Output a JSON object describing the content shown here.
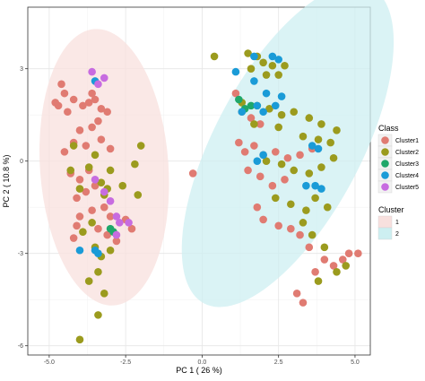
{
  "chart_data": {
    "type": "scatter",
    "xlabel": "PC 1 ( 26 %)",
    "ylabel": "PC 2 ( 10.8 %)",
    "xlim": [
      -5.7,
      5.5
    ],
    "ylim": [
      -6.3,
      5.0
    ],
    "x_ticks": [
      -5.0,
      -2.5,
      0.0,
      2.5,
      5.0
    ],
    "x_tick_labels": [
      "-5.0",
      "-2.5",
      "0.0",
      "2.5",
      "5.0"
    ],
    "y_ticks": [
      -6,
      -3,
      0,
      3
    ],
    "y_tick_labels": [
      "-6",
      "-3",
      "0",
      "3"
    ],
    "grid": true,
    "legends": [
      {
        "title": "Class",
        "placement": "right",
        "entries": [
          {
            "label": "Cluster1",
            "color": "#E07B72"
          },
          {
            "label": "Cluster2",
            "color": "#9B9B1E"
          },
          {
            "label": "Cluster3",
            "color": "#1FA76A"
          },
          {
            "label": "Cluster4",
            "color": "#1A9BD7"
          },
          {
            "label": "Cluster5",
            "color": "#C76CE0"
          }
        ]
      },
      {
        "title": "Cluster",
        "placement": "right",
        "entries": [
          {
            "label": "1",
            "color": "#F8E0DE"
          },
          {
            "label": "2",
            "color": "#CDEFF1"
          }
        ]
      }
    ],
    "ellipses": [
      {
        "group": "1",
        "center": [
          -3.2,
          -0.2
        ],
        "rx": 2.1,
        "ry": 4.5,
        "angle_deg": -4,
        "color": "#F8E0DE"
      },
      {
        "group": "2",
        "center": [
          2.8,
          0.5
        ],
        "rx": 2.4,
        "ry": 5.8,
        "angle_deg": 28,
        "color": "#CDEFF1"
      }
    ],
    "series": [
      {
        "name": "Cluster1",
        "color": "#E07B72",
        "points": [
          [
            -4.6,
            2.5
          ],
          [
            -4.5,
            2.2
          ],
          [
            -4.7,
            1.8
          ],
          [
            -4.8,
            1.9
          ],
          [
            -4.4,
            1.6
          ],
          [
            -4.2,
            2.0
          ],
          [
            -3.9,
            1.8
          ],
          [
            -3.7,
            1.9
          ],
          [
            -3.6,
            2.2
          ],
          [
            -3.5,
            2.0
          ],
          [
            -3.3,
            1.7
          ],
          [
            -3.1,
            1.6
          ],
          [
            -3.4,
            1.3
          ],
          [
            -3.6,
            1.1
          ],
          [
            -4.0,
            1.0
          ],
          [
            -4.2,
            0.6
          ],
          [
            -4.5,
            0.3
          ],
          [
            -3.8,
            0.5
          ],
          [
            -3.3,
            0.7
          ],
          [
            -3.0,
            0.4
          ],
          [
            -4.3,
            -0.4
          ],
          [
            -4.0,
            -0.6
          ],
          [
            -3.7,
            -0.3
          ],
          [
            -4.1,
            -1.2
          ],
          [
            -3.8,
            -1.0
          ],
          [
            -3.5,
            -0.8
          ],
          [
            -3.2,
            -1.5
          ],
          [
            -3.0,
            -1.8
          ],
          [
            -4.0,
            -1.8
          ],
          [
            -4.1,
            -2.1
          ],
          [
            -3.4,
            -2.2
          ],
          [
            -3.1,
            -2.4
          ],
          [
            -2.8,
            -2.6
          ],
          [
            -2.5,
            -1.9
          ],
          [
            -2.3,
            -2.2
          ],
          [
            -4.2,
            -2.5
          ],
          [
            -3.6,
            -1.6
          ],
          [
            -0.3,
            -0.4
          ],
          [
            1.1,
            2.2
          ],
          [
            1.3,
            1.6
          ],
          [
            1.6,
            1.4
          ],
          [
            1.9,
            1.2
          ],
          [
            1.2,
            0.6
          ],
          [
            1.4,
            0.3
          ],
          [
            1.7,
            0.5
          ],
          [
            2.0,
            0.2
          ],
          [
            2.4,
            0.3
          ],
          [
            2.8,
            0.1
          ],
          [
            3.2,
            0.2
          ],
          [
            3.6,
            0.4
          ],
          [
            1.5,
            -0.3
          ],
          [
            1.9,
            -0.5
          ],
          [
            2.3,
            -0.8
          ],
          [
            2.7,
            -0.6
          ],
          [
            1.8,
            -1.5
          ],
          [
            2.0,
            -1.9
          ],
          [
            2.5,
            -2.1
          ],
          [
            2.9,
            -2.2
          ],
          [
            3.2,
            -2.4
          ],
          [
            3.5,
            -2.8
          ],
          [
            3.7,
            -3.6
          ],
          [
            4.0,
            -3.2
          ],
          [
            4.3,
            -3.4
          ],
          [
            4.6,
            -3.2
          ],
          [
            4.8,
            -3.0
          ],
          [
            5.1,
            -3.0
          ],
          [
            3.1,
            -4.3
          ],
          [
            3.3,
            -4.6
          ]
        ]
      },
      {
        "name": "Cluster2",
        "color": "#9B9B1E",
        "points": [
          [
            -4.2,
            0.5
          ],
          [
            -4.3,
            -0.3
          ],
          [
            -4.0,
            -0.9
          ],
          [
            -3.7,
            -0.2
          ],
          [
            -3.5,
            0.2
          ],
          [
            -3.3,
            -0.7
          ],
          [
            -3.1,
            -0.9
          ],
          [
            -3.0,
            -0.3
          ],
          [
            -3.2,
            -1.1
          ],
          [
            -3.6,
            -2.0
          ],
          [
            -3.9,
            -2.3
          ],
          [
            -3.5,
            -2.8
          ],
          [
            -3.3,
            -3.1
          ],
          [
            -3.0,
            -2.9
          ],
          [
            -3.4,
            -3.6
          ],
          [
            -3.7,
            -3.9
          ],
          [
            -3.2,
            -4.3
          ],
          [
            -3.4,
            -5.0
          ],
          [
            -4.0,
            -5.8
          ],
          [
            -2.6,
            -0.8
          ],
          [
            -2.2,
            -0.1
          ],
          [
            -2.0,
            0.5
          ],
          [
            -2.1,
            -1.1
          ],
          [
            0.4,
            3.4
          ],
          [
            1.5,
            3.5
          ],
          [
            1.8,
            3.4
          ],
          [
            2.0,
            3.2
          ],
          [
            2.3,
            3.1
          ],
          [
            1.6,
            3.0
          ],
          [
            2.1,
            2.8
          ],
          [
            2.5,
            2.8
          ],
          [
            2.7,
            3.1
          ],
          [
            1.3,
            1.9
          ],
          [
            1.8,
            1.8
          ],
          [
            2.2,
            1.7
          ],
          [
            2.6,
            1.5
          ],
          [
            3.0,
            1.6
          ],
          [
            3.5,
            1.4
          ],
          [
            3.9,
            1.2
          ],
          [
            4.4,
            1.0
          ],
          [
            1.7,
            1.2
          ],
          [
            2.5,
            1.1
          ],
          [
            3.3,
            0.8
          ],
          [
            3.8,
            0.7
          ],
          [
            4.2,
            0.6
          ],
          [
            2.1,
            0.0
          ],
          [
            2.6,
            -0.1
          ],
          [
            3.0,
            -0.3
          ],
          [
            3.5,
            -0.4
          ],
          [
            3.9,
            -0.2
          ],
          [
            4.3,
            0.1
          ],
          [
            2.4,
            -1.2
          ],
          [
            2.9,
            -1.4
          ],
          [
            3.4,
            -1.6
          ],
          [
            3.7,
            -1.2
          ],
          [
            4.1,
            -1.5
          ],
          [
            3.3,
            -2.0
          ],
          [
            3.6,
            -2.4
          ],
          [
            4.0,
            -2.8
          ],
          [
            4.4,
            -3.6
          ],
          [
            3.8,
            -3.9
          ],
          [
            4.7,
            -3.4
          ]
        ]
      },
      {
        "name": "Cluster3",
        "color": "#1FA76A",
        "points": [
          [
            -3.0,
            -2.2
          ],
          [
            -2.9,
            -2.3
          ],
          [
            1.2,
            2.0
          ],
          [
            1.4,
            1.7
          ],
          [
            1.6,
            1.8
          ]
        ]
      },
      {
        "name": "Cluster4",
        "color": "#1A9BD7",
        "points": [
          [
            -4.0,
            -2.9
          ],
          [
            -3.5,
            -2.9
          ],
          [
            -3.4,
            -3.0
          ],
          [
            -3.5,
            2.6
          ],
          [
            1.1,
            2.9
          ],
          [
            1.7,
            2.6
          ],
          [
            1.3,
            1.6
          ],
          [
            1.8,
            1.8
          ],
          [
            2.0,
            1.6
          ],
          [
            2.4,
            1.8
          ],
          [
            2.1,
            2.2
          ],
          [
            2.6,
            2.1
          ],
          [
            2.0,
            0.2
          ],
          [
            1.8,
            0.0
          ],
          [
            3.6,
            0.5
          ],
          [
            3.8,
            0.4
          ],
          [
            3.4,
            -0.8
          ],
          [
            3.7,
            -0.8
          ],
          [
            3.9,
            -0.9
          ],
          [
            1.7,
            3.4
          ],
          [
            2.3,
            3.4
          ],
          [
            2.5,
            3.3
          ]
        ]
      },
      {
        "name": "Cluster5",
        "color": "#C76CE0",
        "points": [
          [
            -3.6,
            2.9
          ],
          [
            -3.2,
            2.7
          ],
          [
            -3.4,
            2.5
          ],
          [
            -3.5,
            -0.6
          ],
          [
            -3.2,
            -1.0
          ],
          [
            -3.0,
            -1.3
          ],
          [
            -2.8,
            -1.8
          ],
          [
            -2.7,
            -2.0
          ],
          [
            -2.4,
            -2.0
          ],
          [
            -2.8,
            -2.4
          ]
        ]
      }
    ]
  }
}
